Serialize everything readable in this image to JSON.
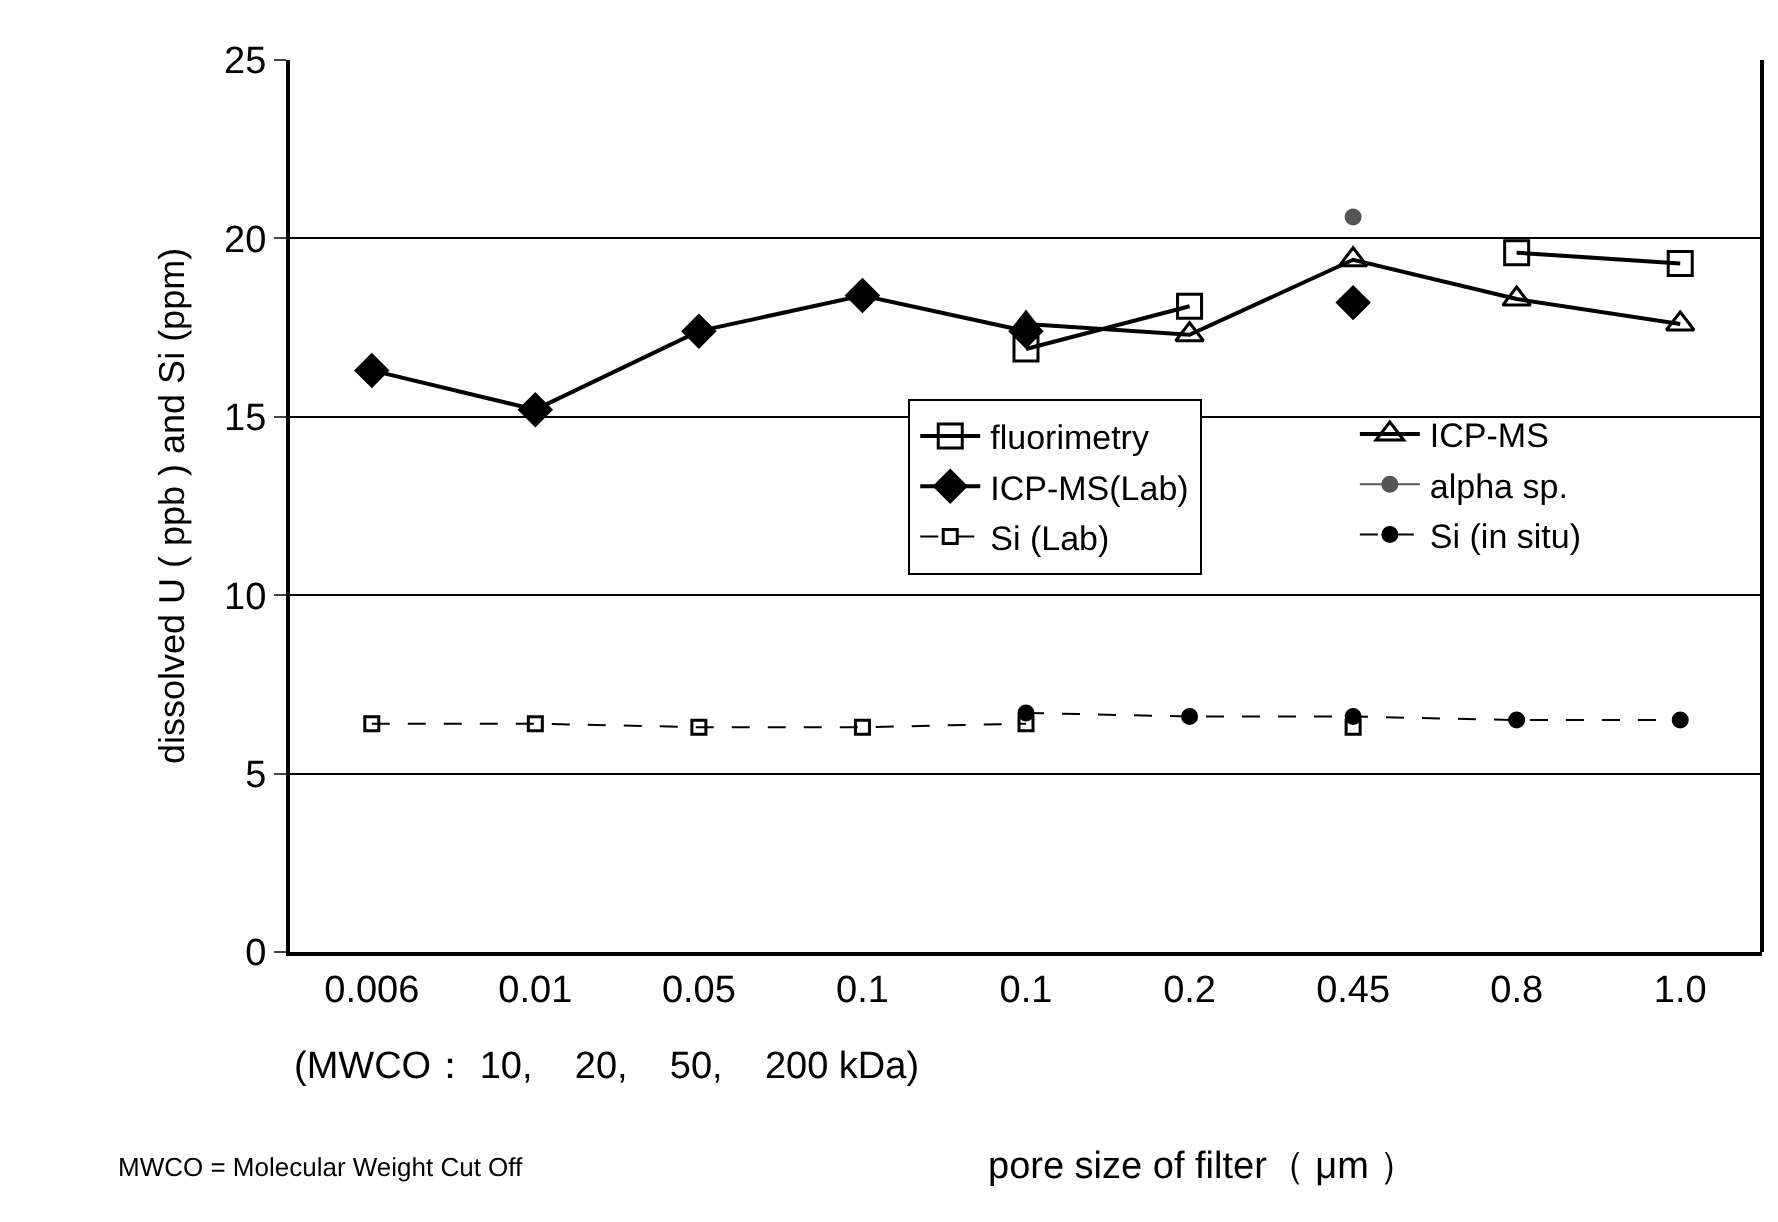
{
  "chart_data": {
    "type": "line",
    "ylabel": "dissolved U ( ppb ) and Si (ppm)",
    "xlabel": "pore size of filter（ μm ）",
    "categories": [
      "0.006",
      "0.01",
      "0.05",
      "0.1",
      "0.1",
      "0.2",
      "0.45",
      "0.8",
      "1.0"
    ],
    "annotations": [
      "(MWCO： 10,    20,    50,    200 kDa)",
      "MWCO = Molecular Weight Cut Off"
    ],
    "ylim": [
      0,
      25
    ],
    "yticks": [
      0,
      5,
      10,
      15,
      20,
      25
    ],
    "grid": "y",
    "legend": "right",
    "series": [
      {
        "name": "fluorimetry",
        "color": "#000000",
        "marker": "square",
        "line_style": "solid",
        "values": [
          null,
          null,
          null,
          null,
          16.9,
          18.1,
          null,
          19.6,
          19.3
        ]
      },
      {
        "name": "ICP-MS",
        "color": "#000000",
        "marker": "triangle",
        "line_style": "solid",
        "values": [
          null,
          null,
          null,
          null,
          17.6,
          17.3,
          19.4,
          18.3,
          17.6
        ]
      },
      {
        "name": "ICP-MS(Lab)",
        "color": "#000000",
        "marker": "diamond",
        "line_style": "solid",
        "values": [
          16.3,
          15.2,
          17.4,
          18.4,
          17.4,
          null,
          18.2,
          null,
          null
        ]
      },
      {
        "name": "alpha sp.",
        "color": "#555555",
        "marker": "circle",
        "line_style": "solid",
        "values": [
          null,
          null,
          null,
          null,
          null,
          null,
          20.6,
          null,
          null
        ]
      },
      {
        "name": "Si (Lab)",
        "color": "#000000",
        "marker": "square",
        "line_style": "dashed",
        "values": [
          6.4,
          6.4,
          6.3,
          6.3,
          6.4,
          null,
          6.3,
          null,
          null
        ]
      },
      {
        "name": "Si (in situ)",
        "color": "#000000",
        "marker": "circle",
        "line_style": "dashed",
        "values": [
          null,
          null,
          null,
          null,
          6.7,
          6.6,
          6.6,
          6.5,
          6.5
        ]
      }
    ]
  }
}
